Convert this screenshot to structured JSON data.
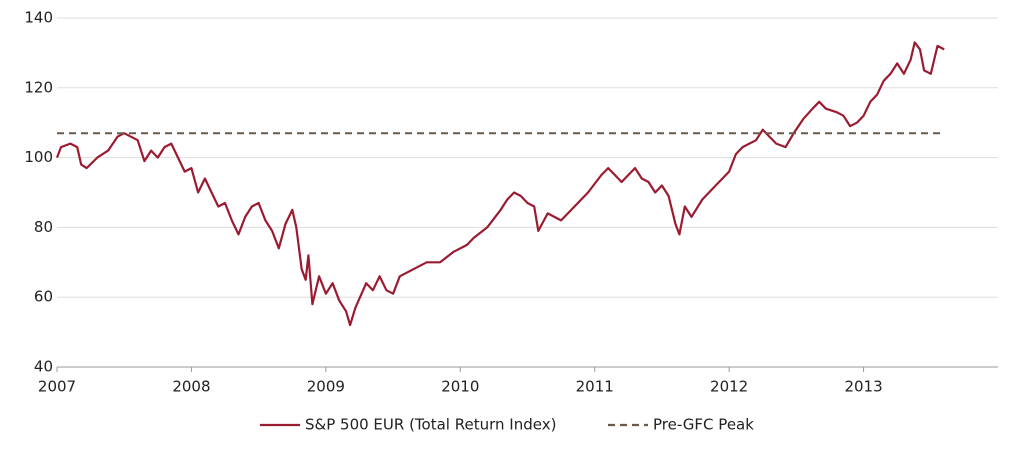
{
  "chart_data": {
    "type": "line",
    "xlim": [
      2007,
      2014
    ],
    "xticks": [
      2007,
      2008,
      2009,
      2010,
      2011,
      2012,
      2013
    ],
    "ylim": [
      40,
      140
    ],
    "yticks": [
      40,
      60,
      80,
      100,
      120,
      140
    ],
    "grid": true,
    "legend": "bottom",
    "series": [
      {
        "name": "S&P 500 EUR (Total Return Index)",
        "color": "#9b1b30",
        "style": "solid",
        "x": [
          2007.0,
          2007.03,
          2007.1,
          2007.15,
          2007.18,
          2007.22,
          2007.3,
          2007.38,
          2007.45,
          2007.5,
          2007.55,
          2007.6,
          2007.65,
          2007.7,
          2007.75,
          2007.8,
          2007.85,
          2007.9,
          2007.95,
          2008.0,
          2008.05,
          2008.1,
          2008.15,
          2008.2,
          2008.25,
          2008.3,
          2008.35,
          2008.4,
          2008.45,
          2008.5,
          2008.55,
          2008.6,
          2008.65,
          2008.7,
          2008.75,
          2008.78,
          2008.82,
          2008.85,
          2008.87,
          2008.9,
          2008.95,
          2009.0,
          2009.05,
          2009.1,
          2009.15,
          2009.18,
          2009.22,
          2009.3,
          2009.35,
          2009.4,
          2009.45,
          2009.5,
          2009.55,
          2009.65,
          2009.75,
          2009.85,
          2009.95,
          2010.05,
          2010.1,
          2010.2,
          2010.3,
          2010.35,
          2010.4,
          2010.45,
          2010.5,
          2010.55,
          2010.58,
          2010.65,
          2010.75,
          2010.85,
          2010.95,
          2011.05,
          2011.1,
          2011.15,
          2011.2,
          2011.3,
          2011.35,
          2011.4,
          2011.45,
          2011.5,
          2011.55,
          2011.6,
          2011.63,
          2011.67,
          2011.72,
          2011.8,
          2011.85,
          2011.9,
          2012.0,
          2012.05,
          2012.1,
          2012.2,
          2012.25,
          2012.3,
          2012.35,
          2012.42,
          2012.48,
          2012.55,
          2012.62,
          2012.67,
          2012.72,
          2012.8,
          2012.85,
          2012.9,
          2012.95,
          2013.0,
          2013.05,
          2013.1,
          2013.15,
          2013.2,
          2013.25,
          2013.3,
          2013.35,
          2013.38,
          2013.42,
          2013.45,
          2013.5,
          2013.55,
          2013.6
        ],
        "values": [
          100,
          103,
          104,
          103,
          98,
          97,
          100,
          102,
          106,
          107,
          106,
          105,
          99,
          102,
          100,
          103,
          104,
          100,
          96,
          97,
          90,
          94,
          90,
          86,
          87,
          82,
          78,
          83,
          86,
          87,
          82,
          79,
          74,
          81,
          85,
          80,
          68,
          65,
          72,
          58,
          66,
          61,
          64,
          59,
          56,
          52,
          57,
          64,
          62,
          66,
          62,
          61,
          66,
          68,
          70,
          70,
          73,
          75,
          77,
          80,
          85,
          88,
          90,
          89,
          87,
          86,
          79,
          84,
          82,
          86,
          90,
          95,
          97,
          95,
          93,
          97,
          94,
          93,
          90,
          92,
          89,
          81,
          78,
          86,
          83,
          88,
          90,
          92,
          96,
          101,
          103,
          105,
          108,
          106,
          104,
          103,
          107,
          111,
          114,
          116,
          114,
          113,
          112,
          109,
          110,
          112,
          116,
          118,
          122,
          124,
          127,
          124,
          128,
          133,
          131,
          125,
          124,
          132,
          131
        ]
      },
      {
        "name": "Pre-GFC Peak",
        "color": "#6b5a4a",
        "style": "dashed",
        "x": [
          2007,
          2013.6
        ],
        "values": [
          107,
          107
        ]
      }
    ]
  }
}
